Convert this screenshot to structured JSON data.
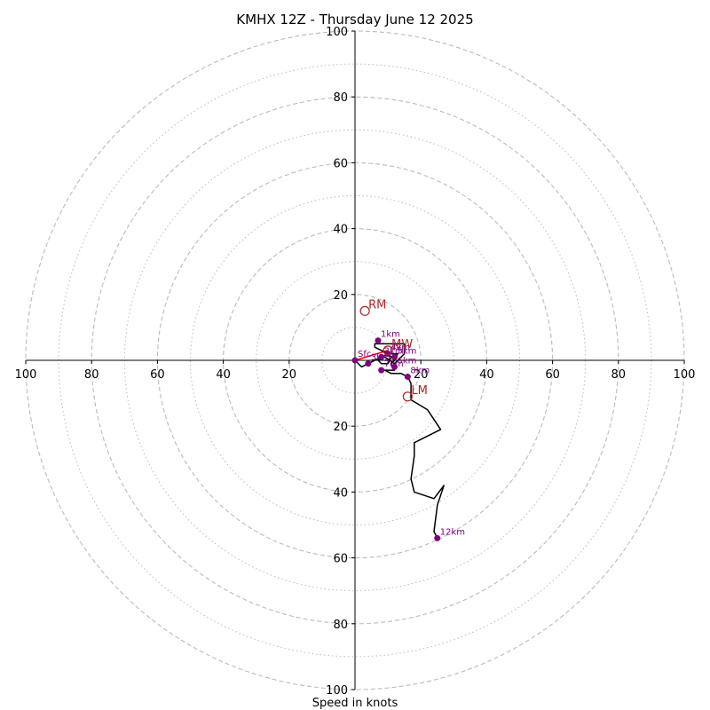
{
  "chart_data": {
    "type": "hodograph",
    "title": "KMHX 12Z - Thursday June 12 2025",
    "xlabel": "Speed in knots",
    "range": [
      -100,
      100
    ],
    "rings_major": [
      20,
      40,
      60,
      80,
      100
    ],
    "rings_minor": [
      10,
      30,
      50,
      70,
      90
    ],
    "x_ticks": [
      -100,
      -80,
      -60,
      -40,
      -20,
      20,
      40,
      60,
      80,
      100
    ],
    "x_tick_labels": [
      "100",
      "80",
      "60",
      "40",
      "20",
      "20",
      "40",
      "60",
      "80",
      "100"
    ],
    "y_ticks": [
      100,
      80,
      60,
      40,
      20,
      -20,
      -40,
      -60,
      -80,
      -100
    ],
    "y_tick_labels": [
      "100",
      "80",
      "60",
      "40",
      "20",
      "20",
      "40",
      "60",
      "80",
      "100"
    ],
    "grid": true,
    "trace": [
      [
        0,
        0
      ],
      [
        2,
        -2
      ],
      [
        4,
        -1
      ],
      [
        8,
        1
      ],
      [
        10,
        2
      ],
      [
        6,
        4
      ],
      [
        6,
        5
      ],
      [
        12,
        5
      ],
      [
        15,
        5
      ],
      [
        15,
        2
      ],
      [
        12,
        -1
      ],
      [
        9,
        1
      ],
      [
        7,
        0
      ],
      [
        8,
        -1
      ],
      [
        10,
        -1
      ],
      [
        11,
        1
      ],
      [
        10,
        2
      ],
      [
        13,
        2
      ],
      [
        12,
        0
      ],
      [
        11,
        -1
      ],
      [
        12,
        -3
      ],
      [
        9,
        -3
      ],
      [
        11,
        -4
      ],
      [
        14,
        -4
      ],
      [
        16,
        -5
      ],
      [
        17,
        -7
      ],
      [
        17,
        -12
      ],
      [
        22,
        -15
      ],
      [
        26,
        -21
      ],
      [
        18,
        -25
      ],
      [
        18,
        -29
      ],
      [
        17,
        -36
      ],
      [
        18,
        -40
      ],
      [
        24,
        -42
      ],
      [
        27,
        -38
      ],
      [
        25,
        -44
      ],
      [
        24,
        -52
      ],
      [
        25,
        -54
      ]
    ],
    "height_points": [
      {
        "label": "Sfc",
        "u": 0,
        "v": 0
      },
      {
        "label": "1km",
        "u": 7,
        "v": 6
      },
      {
        "label": "2km",
        "u": 8,
        "v": 1
      },
      {
        "label": "3km",
        "u": 4,
        "v": -1
      },
      {
        "label": "4km",
        "u": 10,
        "v": 2
      },
      {
        "label": "5km",
        "u": 12,
        "v": 1
      },
      {
        "label": "6km",
        "u": 12,
        "v": -2
      },
      {
        "label": "7km",
        "u": 8,
        "v": -3
      },
      {
        "label": "8km",
        "u": 16,
        "v": -5
      },
      {
        "label": "12km",
        "u": 25,
        "v": -54
      }
    ],
    "storm_motion": [
      {
        "label": "RM",
        "u": 3,
        "v": 15
      },
      {
        "label": "MW",
        "u": 10,
        "v": 3
      },
      {
        "label": "LM",
        "u": 16,
        "v": -11
      }
    ],
    "shear_vector": {
      "from": [
        0,
        0
      ],
      "to": [
        10,
        3
      ]
    },
    "colors": {
      "trace": "#000000",
      "height_points": "#800080",
      "storm_motion": "#b22222",
      "shear_vector": "#ff0000",
      "grid": "#bbbbbb"
    }
  }
}
